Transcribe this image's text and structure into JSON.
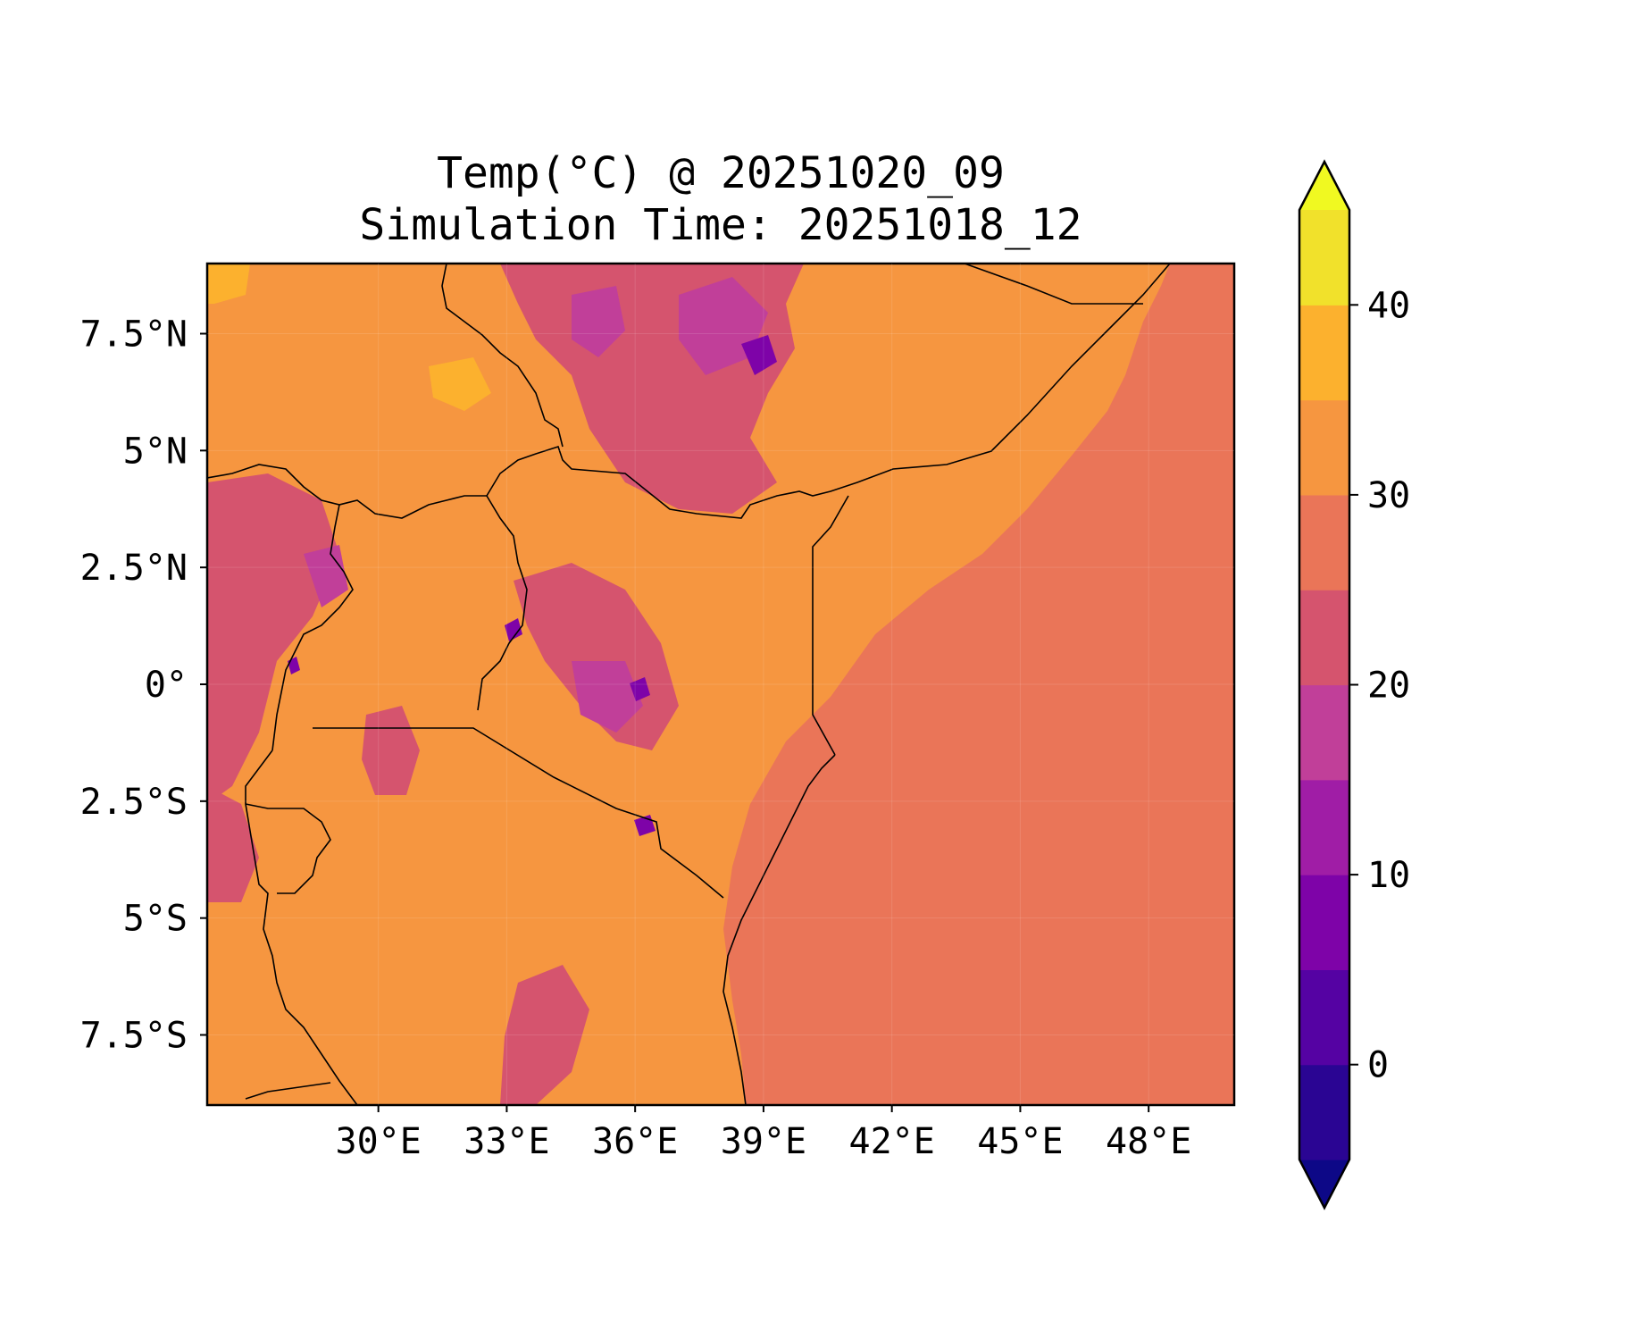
{
  "title": {
    "line1": "Temp(°C) @ 20251020_09",
    "line2": "Simulation Time: 20251018_12"
  },
  "map": {
    "lon_range": [
      26.0,
      50.0
    ],
    "lat_range": [
      -9.0,
      9.0
    ],
    "x_ticks": [
      {
        "value": 30,
        "label": "30°E"
      },
      {
        "value": 33,
        "label": "33°E"
      },
      {
        "value": 36,
        "label": "36°E"
      },
      {
        "value": 39,
        "label": "39°E"
      },
      {
        "value": 42,
        "label": "42°E"
      },
      {
        "value": 45,
        "label": "45°E"
      },
      {
        "value": 48,
        "label": "48°E"
      }
    ],
    "y_ticks": [
      {
        "value": 7.5,
        "label": "7.5°N"
      },
      {
        "value": 5,
        "label": "5°N"
      },
      {
        "value": 2.5,
        "label": "2.5°N"
      },
      {
        "value": 0,
        "label": "0°"
      },
      {
        "value": -2.5,
        "label": "2.5°S"
      },
      {
        "value": -5,
        "label": "5°S"
      },
      {
        "value": -7.5,
        "label": "7.5°S"
      }
    ],
    "ocean_color": "#ea7558",
    "land_color": "#f69640",
    "border_color": "#000000"
  },
  "colorbar": {
    "levels": [
      -5,
      0,
      5,
      10,
      15,
      20,
      25,
      30,
      35,
      40,
      45
    ],
    "colors": [
      "#2a0593",
      "#5502a3",
      "#7e03a8",
      "#a01da6",
      "#c13f99",
      "#d5546e",
      "#ea7558",
      "#f69640",
      "#fcb12e",
      "#f1e12b"
    ],
    "under_color": "#0d0887",
    "over_color": "#f0f921",
    "ticks": [
      {
        "value": 0,
        "label": "0"
      },
      {
        "value": 10,
        "label": "10"
      },
      {
        "value": 20,
        "label": "20"
      },
      {
        "value": 30,
        "label": "30"
      },
      {
        "value": 40,
        "label": "40"
      }
    ]
  }
}
